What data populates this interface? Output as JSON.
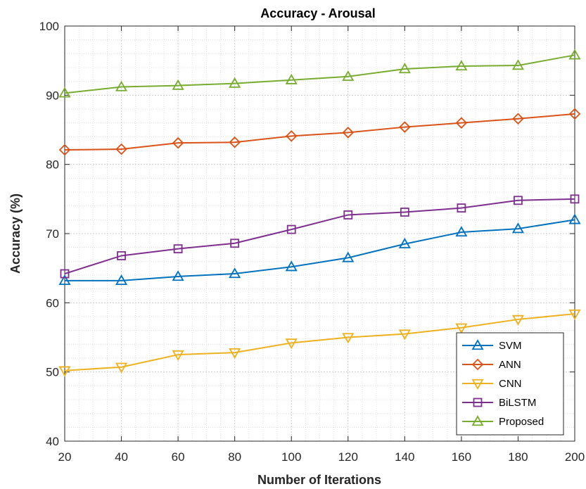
{
  "chart_data": {
    "type": "line",
    "title": "Accuracy - Arousal",
    "xlabel": "Number of Iterations",
    "ylabel": "Accuracy (%)",
    "x": [
      20,
      40,
      60,
      80,
      100,
      120,
      140,
      160,
      180,
      200
    ],
    "xlim": [
      20,
      200
    ],
    "ylim": [
      40,
      100
    ],
    "xticks": [
      20,
      40,
      60,
      80,
      100,
      120,
      140,
      160,
      180,
      200
    ],
    "yticks": [
      40,
      50,
      60,
      70,
      80,
      90,
      100
    ],
    "grid": true,
    "legend_position": "bottom-right",
    "series": [
      {
        "name": "SVM",
        "color": "#0072BD",
        "marker": "triangle-up",
        "values": [
          63.2,
          63.2,
          63.8,
          64.2,
          65.2,
          66.5,
          68.5,
          70.2,
          70.7,
          72.0
        ]
      },
      {
        "name": "ANN",
        "color": "#D95319",
        "marker": "diamond",
        "values": [
          82.1,
          82.2,
          83.1,
          83.2,
          84.1,
          84.6,
          85.4,
          86.0,
          86.6,
          87.3
        ]
      },
      {
        "name": "CNN",
        "color": "#EDB120",
        "marker": "triangle-down",
        "values": [
          50.2,
          50.7,
          52.5,
          52.8,
          54.2,
          55.0,
          55.5,
          56.4,
          57.6,
          58.4
        ]
      },
      {
        "name": "BiLSTM",
        "color": "#7E2F8E",
        "marker": "square",
        "values": [
          64.2,
          66.8,
          67.8,
          68.6,
          70.6,
          72.7,
          73.1,
          73.7,
          74.8,
          75.0
        ]
      },
      {
        "name": "Proposed",
        "color": "#77AC30",
        "marker": "triangle-up",
        "values": [
          90.3,
          91.2,
          91.4,
          91.7,
          92.2,
          92.7,
          93.8,
          94.2,
          94.3,
          95.8
        ]
      }
    ]
  }
}
